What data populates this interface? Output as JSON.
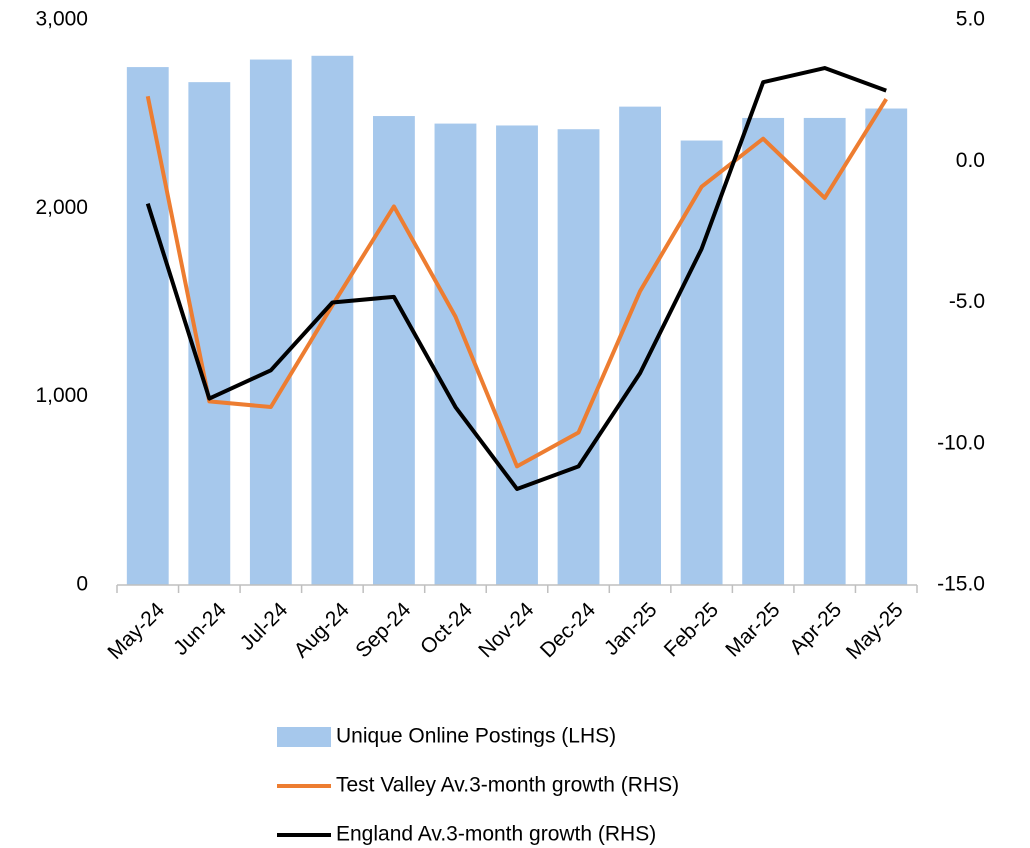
{
  "chart_data": {
    "type": "bar",
    "categories": [
      "May-24",
      "Jun-24",
      "Jul-24",
      "Aug-24",
      "Sep-24",
      "Oct-24",
      "Nov-24",
      "Dec-24",
      "Jan-25",
      "Feb-25",
      "Mar-25",
      "Apr-25",
      "May-25"
    ],
    "series": [
      {
        "name": "Unique Online Postings (LHS)",
        "type": "bar",
        "color": "#a6c8ec",
        "values": [
          2750,
          2670,
          2790,
          2810,
          2490,
          2450,
          2440,
          2420,
          2540,
          2360,
          2480,
          2480,
          2530
        ]
      },
      {
        "name": "Test Valley Av.3-month growth (RHS)",
        "type": "line",
        "axis": "y2",
        "color": "#ed7d31",
        "values": [
          2.3,
          -8.5,
          -8.7,
          -5.1,
          -1.6,
          -5.5,
          -10.8,
          -9.6,
          -4.6,
          -0.9,
          0.8,
          -1.3,
          2.2
        ]
      },
      {
        "name": "England Av.3-month growth (RHS)",
        "type": "line",
        "axis": "y2",
        "color": "#000000",
        "values": [
          -1.5,
          -8.4,
          -7.4,
          -5.0,
          -4.8,
          -8.7,
          -11.6,
          -10.8,
          -7.5,
          -3.1,
          2.8,
          3.3,
          2.5
        ]
      }
    ],
    "ylim": [
      0,
      3000
    ],
    "yticks": [
      0,
      {
        "value": 1000,
        "label": "1,000"
      },
      {
        "value": 2000,
        "label": "2,000"
      },
      {
        "value": 3000,
        "label": "3,000"
      }
    ],
    "y2lim": [
      -15,
      5
    ],
    "y2ticks": [
      {
        "value": -15,
        "label": "-15.0"
      },
      {
        "value": -10,
        "label": "-10.0"
      },
      {
        "value": -5,
        "label": "-5.0"
      },
      {
        "value": 0,
        "label": "0.0"
      },
      {
        "value": 5,
        "label": "5.0"
      }
    ],
    "grid": false,
    "legend": "bottom"
  }
}
